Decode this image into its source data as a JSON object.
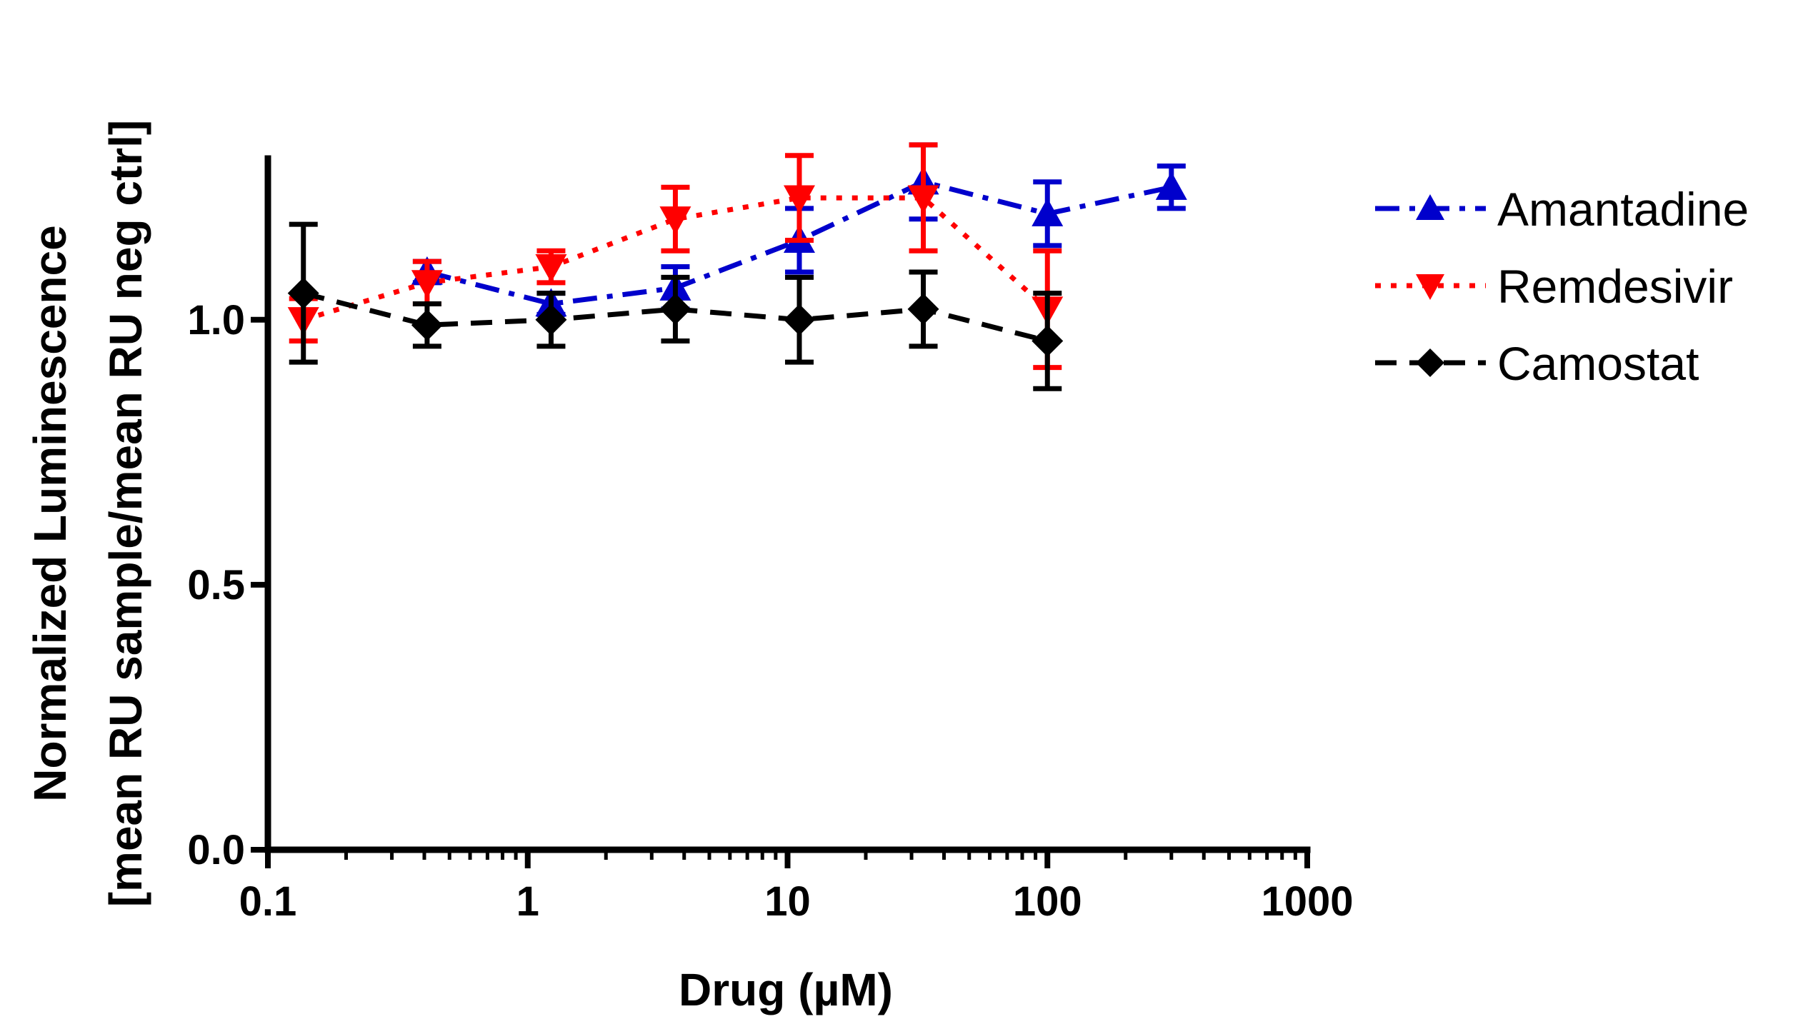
{
  "chart_data": {
    "type": "line",
    "title": "",
    "xlabel": "Drug (µM)",
    "ylabel_line1": "Normalized Luminescence",
    "ylabel_line2": "[mean RU sample/mean RU neg ctrl]",
    "xscale": "log",
    "xlim": [
      0.1,
      1000
    ],
    "ylim": [
      0,
      1.35
    ],
    "xticks": [
      {
        "value": 0.1,
        "label": "0.1"
      },
      {
        "value": 1,
        "label": "1"
      },
      {
        "value": 10,
        "label": "10"
      },
      {
        "value": 100,
        "label": "100"
      },
      {
        "value": 1000,
        "label": "1000"
      }
    ],
    "yticks": [
      {
        "value": 0.0,
        "label": "0.0"
      },
      {
        "value": 0.5,
        "label": "0.5"
      },
      {
        "value": 1.0,
        "label": "1.0"
      }
    ],
    "legend_position": "right",
    "series": [
      {
        "name": "Amantadine",
        "color": "#0000cc",
        "marker": "triangle-up",
        "line_style": "dash-dot",
        "x": [
          0.41,
          1.23,
          3.7,
          11.1,
          33.3,
          100,
          300
        ],
        "y": [
          1.09,
          1.03,
          1.06,
          1.15,
          1.26,
          1.2,
          1.25
        ],
        "err": [
          0.02,
          0.02,
          0.04,
          0.06,
          0.07,
          0.06,
          0.04
        ]
      },
      {
        "name": "Remdesivir",
        "color": "#ff0000",
        "marker": "triangle-down",
        "line_style": "dotted",
        "x": [
          0.137,
          0.41,
          1.23,
          3.7,
          11.1,
          33.3,
          100
        ],
        "y": [
          1.0,
          1.07,
          1.1,
          1.19,
          1.23,
          1.23,
          1.02
        ],
        "err": [
          0.04,
          0.04,
          0.03,
          0.06,
          0.08,
          0.1,
          0.11
        ]
      },
      {
        "name": "Camostat",
        "color": "#000000",
        "marker": "diamond",
        "line_style": "dashed",
        "x": [
          0.137,
          0.41,
          1.23,
          3.7,
          11.1,
          33.3,
          100
        ],
        "y": [
          1.05,
          0.99,
          1.0,
          1.02,
          1.0,
          1.02,
          0.96
        ],
        "err": [
          0.13,
          0.04,
          0.05,
          0.06,
          0.08,
          0.07,
          0.09
        ]
      }
    ]
  }
}
